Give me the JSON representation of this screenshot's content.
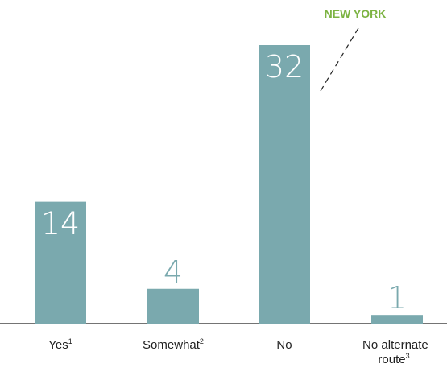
{
  "chart_data": {
    "type": "bar",
    "categories": [
      {
        "label": "Yes",
        "sup": "1"
      },
      {
        "label": "Somewhat",
        "sup": "2"
      },
      {
        "label": "No",
        "sup": ""
      },
      {
        "label": "No alternate route",
        "sup": "3"
      }
    ],
    "values": [
      14,
      4,
      32,
      1
    ],
    "ylim": [
      0,
      32
    ],
    "title": "",
    "xlabel": "",
    "ylabel": "",
    "grid": false,
    "annotation": {
      "text": "NEW YORK",
      "category_index": 2
    }
  },
  "colors": {
    "bar": "#7aa9ae",
    "value_label_outside": "#7aa9ae",
    "value_label_inside": "#ffffff",
    "callout": "#7cb342",
    "axis": "#222222"
  }
}
